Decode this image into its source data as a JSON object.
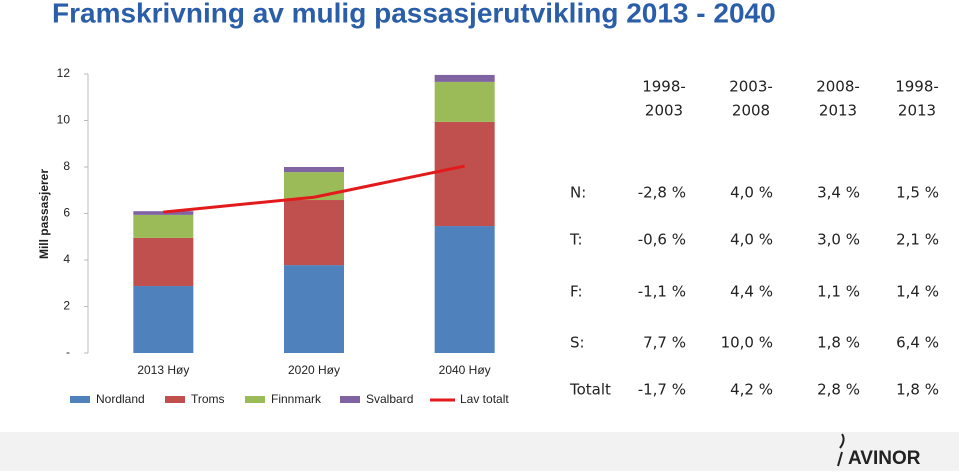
{
  "chart_data": {
    "type": "bar",
    "stacked": true,
    "title": "Framskrivning av mulig passasjerutvikling 2013 - 2040",
    "ylabel": "Mill passasjerer",
    "categories": [
      "2013 Høy",
      "2020 Høy",
      "2040 Høy"
    ],
    "ylim": [
      0,
      12
    ],
    "yticks": [
      {
        "value": 0,
        "label": "-"
      },
      2,
      4,
      6,
      8,
      10,
      12
    ],
    "series": [
      {
        "name": "Nordland",
        "type": "bar",
        "color": "#4f81bd",
        "values": [
          2.88,
          3.78,
          5.46
        ]
      },
      {
        "name": "Troms",
        "type": "bar",
        "color": "#c0504d",
        "values": [
          2.07,
          2.8,
          4.48
        ]
      },
      {
        "name": "Finnmark",
        "type": "bar",
        "color": "#9bbb59",
        "values": [
          0.99,
          1.2,
          1.72
        ]
      },
      {
        "name": "Svalbard",
        "type": "bar",
        "color": "#8064a2",
        "values": [
          0.16,
          0.22,
          0.3
        ]
      },
      {
        "name": "Lav totalt",
        "type": "line",
        "color": "#e31a1c",
        "values": [
          6.06,
          6.7,
          8.04
        ]
      }
    ]
  },
  "table": {
    "header": [
      [
        "1998-",
        "2003"
      ],
      [
        "2003-",
        "2008"
      ],
      [
        "2008-",
        "2013"
      ],
      [
        "1998-",
        "2013"
      ]
    ],
    "rows": [
      [
        "N:",
        "-2,8 %",
        "4,0 %",
        "3,4 %",
        "1,5 %"
      ],
      [
        "T:",
        "-0,6 %",
        "4,0 %",
        "3,0 %",
        "2,1 %"
      ],
      [
        "F:",
        "-1,1 %",
        "4,4 %",
        "1,1 %",
        "1,4 %"
      ],
      [
        "S:",
        "7,7 %",
        "10,0 %",
        "1,8 %",
        "6,4 %"
      ],
      [
        "Totalt",
        "-1,7 %",
        "4,2 %",
        "2,8 %",
        "1,8 %"
      ]
    ]
  },
  "logo": "AVINOR"
}
